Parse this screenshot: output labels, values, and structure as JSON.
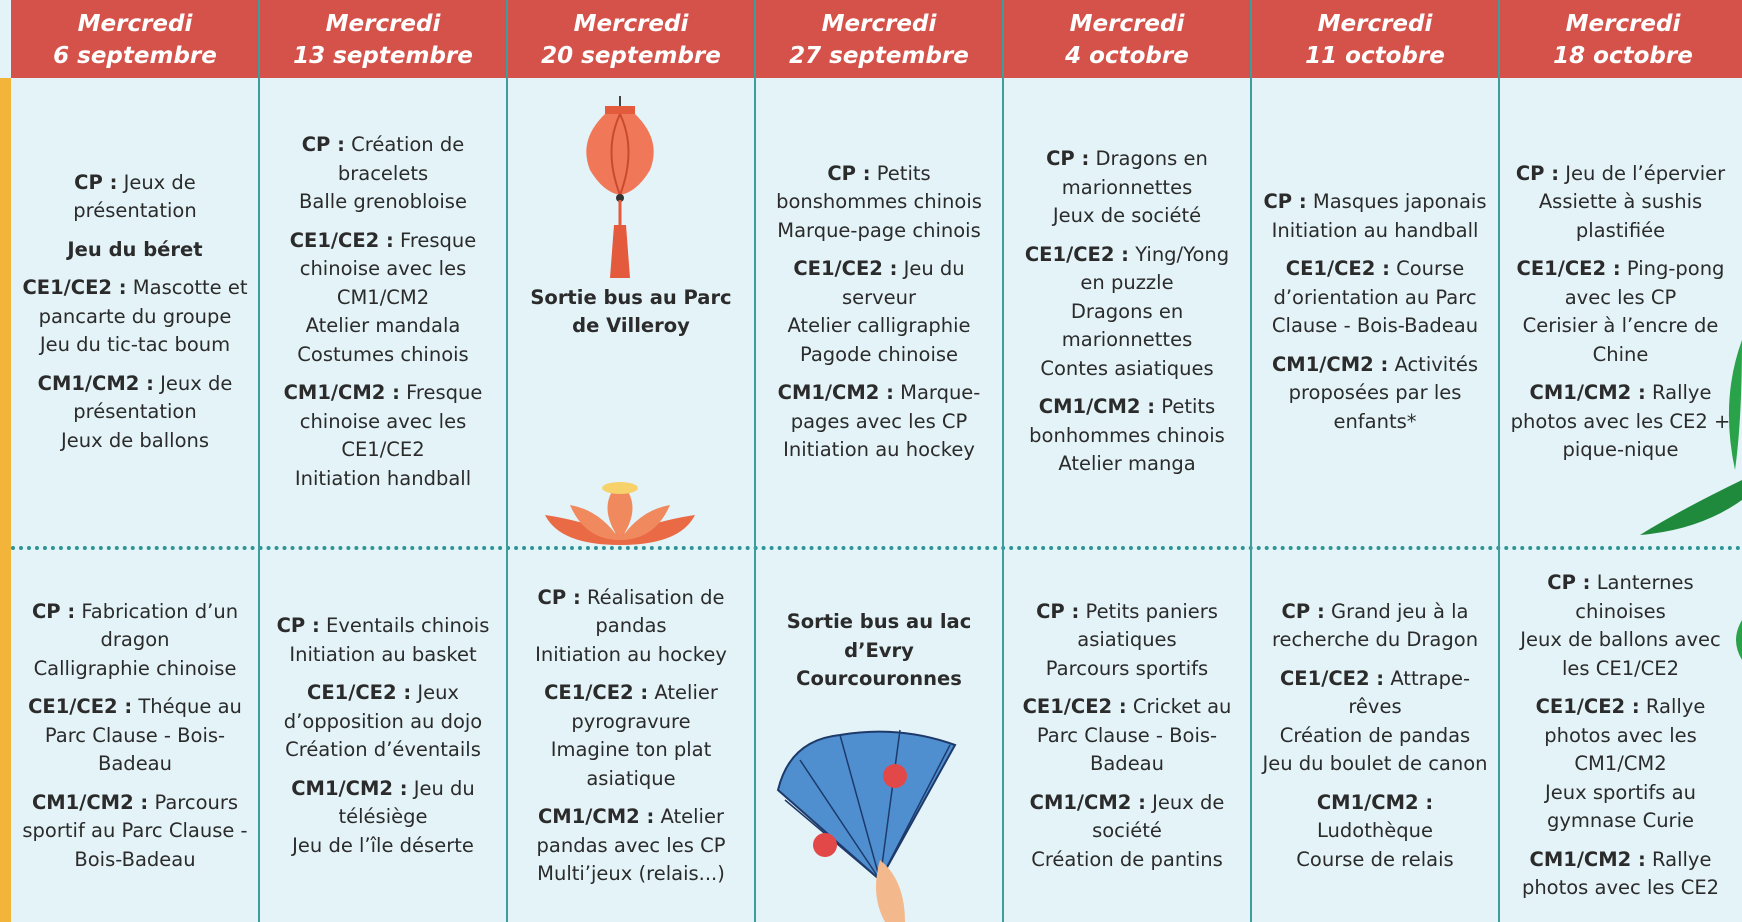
{
  "columns": [
    {
      "day": "Mercredi",
      "date": "6 septembre",
      "top": [
        {
          "label": "CP :",
          "lines": [
            "Jeux de présentation"
          ]
        },
        {
          "title": "Jeu du béret"
        },
        {
          "label": "CE1/CE2 :",
          "lines": [
            "Mascotte et pancarte du groupe",
            "Jeu du tic-tac boum"
          ]
        },
        {
          "label": "CM1/CM2 :",
          "lines": [
            "Jeux de présentation",
            "Jeux de ballons"
          ]
        }
      ],
      "bottom": [
        {
          "label": "CP :",
          "lines": [
            "Fabrication d’un dragon",
            "Calligraphie chinoise"
          ]
        },
        {
          "label": "CE1/CE2 :",
          "lines": [
            "Théque au Parc Clause - Bois-Badeau"
          ]
        },
        {
          "label": "CM1/CM2 :",
          "lines": [
            "Parcours sportif au Parc Clause - Bois-Badeau"
          ]
        }
      ]
    },
    {
      "day": "Mercredi",
      "date": "13 septembre",
      "top": [
        {
          "label": "CP :",
          "lines": [
            "Création de bracelets",
            "Balle grenobloise"
          ]
        },
        {
          "label": "CE1/CE2 :",
          "lines": [
            "Fresque chinoise avec les CM1/CM2",
            "Atelier mandala",
            "Costumes chinois"
          ]
        },
        {
          "label": "CM1/CM2 :",
          "lines": [
            "Fresque chinoise avec les CE1/CE2",
            "Initiation handball"
          ]
        }
      ],
      "bottom": [
        {
          "label": "CP :",
          "lines": [
            "Eventails chinois",
            "Initiation au basket"
          ]
        },
        {
          "label": "CE1/CE2 :",
          "lines": [
            "Jeux d’opposition au dojo",
            "Création d’éventails"
          ]
        },
        {
          "label": "CM1/CM2 :",
          "lines": [
            "Jeu du télésiège",
            "Jeu de l’île déserte"
          ]
        }
      ]
    },
    {
      "day": "Mercredi",
      "date": "20 septembre",
      "top": [
        {
          "title": "Sortie bus au Parc de Villeroy"
        }
      ],
      "bottom": [
        {
          "label": "CP :",
          "lines": [
            "Réalisation de pandas",
            "Initiation au hockey"
          ]
        },
        {
          "label": "CE1/CE2 :",
          "lines": [
            "Atelier pyrogravure",
            "Imagine ton plat asiatique"
          ]
        },
        {
          "label": "CM1/CM2 :",
          "lines": [
            "Atelier pandas avec les CP",
            "Multi’jeux (relais...)"
          ]
        }
      ]
    },
    {
      "day": "Mercredi",
      "date": "27 septembre",
      "top": [
        {
          "label": "CP :",
          "lines": [
            "Petits bonshommes chinois",
            "Marque-page chinois"
          ]
        },
        {
          "label": "CE1/CE2 :",
          "lines": [
            "Jeu du serveur",
            "Atelier calligraphie",
            "Pagode chinoise"
          ]
        },
        {
          "label": "CM1/CM2 :",
          "lines": [
            "Marque-pages avec les CP",
            "Initiation au hockey"
          ]
        }
      ],
      "bottom": [
        {
          "title": "Sortie bus au lac d’Evry Courcouronnes"
        }
      ]
    },
    {
      "day": "Mercredi",
      "date": "4 octobre",
      "top": [
        {
          "label": "CP :",
          "lines": [
            "Dragons en marionnettes",
            "Jeux de société"
          ]
        },
        {
          "label": "CE1/CE2 :",
          "lines": [
            "Ying/Yong en puzzle",
            "Dragons en marionnettes",
            "Contes asiatiques"
          ]
        },
        {
          "label": "CM1/CM2 :",
          "lines": [
            "Petits bonhommes chinois",
            "Atelier manga"
          ]
        }
      ],
      "bottom": [
        {
          "label": "CP :",
          "lines": [
            "Petits paniers asiatiques",
            "Parcours sportifs"
          ]
        },
        {
          "label": "CE1/CE2 :",
          "lines": [
            "Cricket au Parc Clause - Bois-Badeau"
          ]
        },
        {
          "label": "CM1/CM2 :",
          "lines": [
            "Jeux de société",
            "Création de pantins"
          ]
        }
      ]
    },
    {
      "day": "Mercredi",
      "date": "11 octobre",
      "top": [
        {
          "label": "CP :",
          "lines": [
            "Masques japonais",
            "Initiation au handball"
          ]
        },
        {
          "label": "CE1/CE2 :",
          "lines": [
            "Course d’orientation au Parc Clause - Bois-Badeau"
          ]
        },
        {
          "label": "CM1/CM2 :",
          "lines": [
            "Activités proposées par les enfants*"
          ]
        }
      ],
      "bottom": [
        {
          "label": "CP :",
          "lines": [
            "Grand jeu à la recherche du Dragon"
          ]
        },
        {
          "label": "CE1/CE2 :",
          "lines": [
            "Attrape-rêves",
            "Création de pandas",
            "Jeu du boulet de canon"
          ]
        },
        {
          "label": "CM1/CM2 :",
          "lines": [
            "Ludothèque",
            "Course de relais"
          ]
        }
      ]
    },
    {
      "day": "Mercredi",
      "date": "18 octobre",
      "top": [
        {
          "label": "CP :",
          "lines": [
            "Jeu de l’épervier",
            "Assiette à sushis plastifiée"
          ]
        },
        {
          "label": "CE1/CE2 :",
          "lines": [
            "Ping-pong avec les CP",
            "Cerisier à l’encre de Chine"
          ]
        },
        {
          "label": "CM1/CM2 :",
          "lines": [
            "Rallye photos avec les CE2 + pique-nique"
          ]
        }
      ],
      "bottom": [
        {
          "label": "CP :",
          "lines": [
            "Lanternes chinoises",
            "Jeux de ballons avec les CE1/CE2"
          ]
        },
        {
          "label": "CE1/CE2 :",
          "lines": [
            "Rallye photos avec les CM1/CM2",
            "Jeux sportifs au gymnase Curie"
          ]
        },
        {
          "label": "CM1/CM2 :",
          "lines": [
            "Rallye photos avec les CE2"
          ]
        }
      ]
    }
  ]
}
